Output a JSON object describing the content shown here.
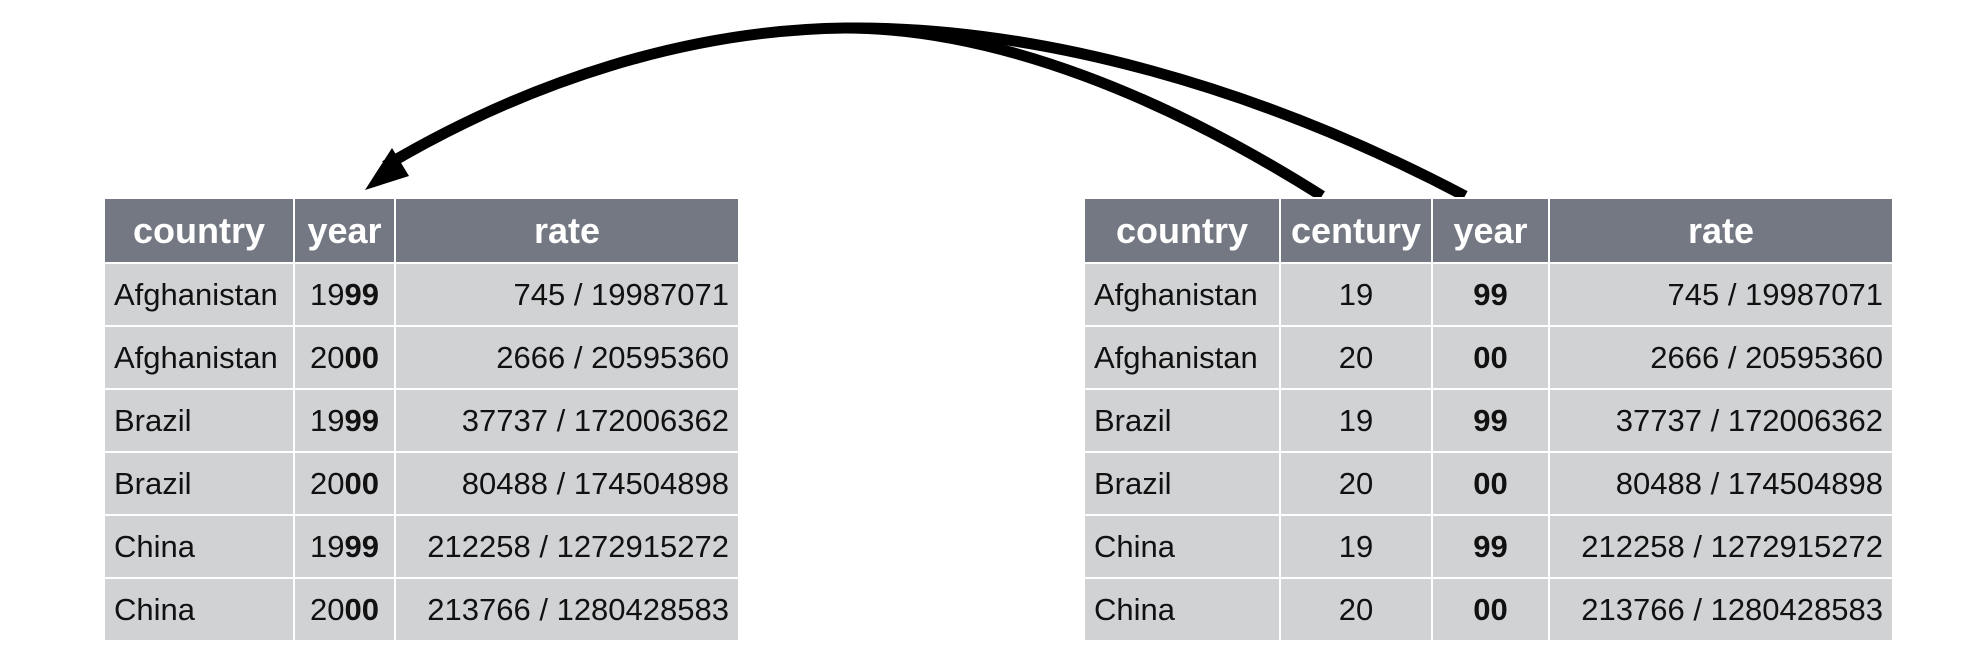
{
  "colors": {
    "header_bg": "#737882",
    "header_text": "#ffffff",
    "cell_bg": "#d1d2d4",
    "cell_text": "#111111",
    "arrow": "#000000"
  },
  "left_table": {
    "headers": [
      "country",
      "year",
      "rate"
    ],
    "rows": [
      {
        "country": "Afghanistan",
        "year_century": "19",
        "year_suffix": "99",
        "rate": "745 / 19987071"
      },
      {
        "country": "Afghanistan",
        "year_century": "20",
        "year_suffix": "00",
        "rate": "2666 / 20595360"
      },
      {
        "country": "Brazil",
        "year_century": "19",
        "year_suffix": "99",
        "rate": "37737 / 172006362"
      },
      {
        "country": "Brazil",
        "year_century": "20",
        "year_suffix": "00",
        "rate": "80488 / 174504898"
      },
      {
        "country": "China",
        "year_century": "19",
        "year_suffix": "99",
        "rate": "212258 / 1272915272"
      },
      {
        "country": "China",
        "year_century": "20",
        "year_suffix": "00",
        "rate": "213766 / 1280428583"
      }
    ]
  },
  "right_table": {
    "headers": [
      "country",
      "century",
      "year",
      "rate"
    ],
    "rows": [
      {
        "country": "Afghanistan",
        "century": "19",
        "year": "99",
        "rate": "745 / 19987071"
      },
      {
        "country": "Afghanistan",
        "century": "20",
        "year": "00",
        "rate": "2666 / 20595360"
      },
      {
        "country": "Brazil",
        "century": "19",
        "year": "99",
        "rate": "37737 / 172006362"
      },
      {
        "country": "Brazil",
        "century": "20",
        "year": "00",
        "rate": "80488 / 174504898"
      },
      {
        "country": "China",
        "century": "19",
        "year": "99",
        "rate": "212258 / 1272915272"
      },
      {
        "country": "China",
        "century": "20",
        "year": "00",
        "rate": "213766 / 1280428583"
      }
    ]
  }
}
